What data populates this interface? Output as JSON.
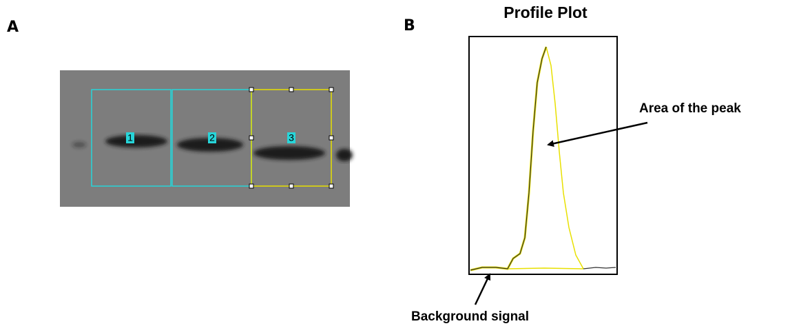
{
  "panel_a": {
    "label": "A",
    "lanes": [
      "1",
      "2",
      "3"
    ]
  },
  "panel_b": {
    "label": "B",
    "title": "Profile Plot",
    "peak_annotation": "Area of the peak",
    "background_annotation": "Background signal"
  }
}
